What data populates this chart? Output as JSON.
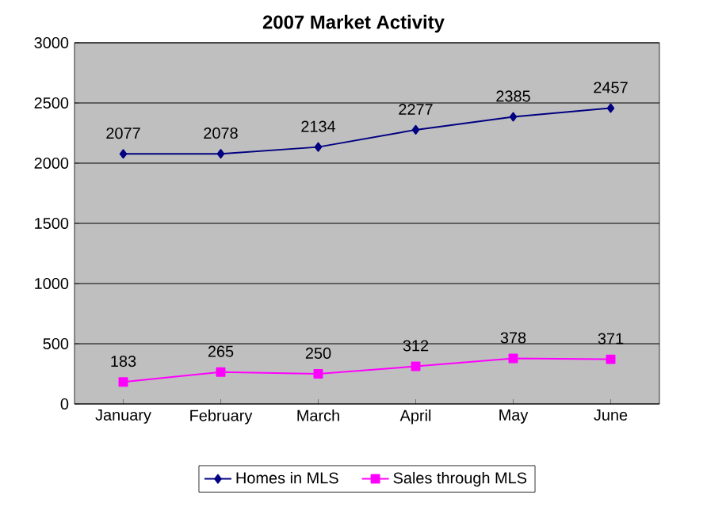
{
  "chart_data": {
    "type": "line",
    "title": "2007 Market Activity",
    "categories": [
      "January",
      "February",
      "March",
      "April",
      "May",
      "June"
    ],
    "series": [
      {
        "name": "Homes in MLS",
        "color": "#000080",
        "marker": "diamond",
        "values": [
          2077,
          2078,
          2134,
          2277,
          2385,
          2457
        ]
      },
      {
        "name": "Sales through MLS",
        "color": "#ff00ff",
        "marker": "square",
        "values": [
          183,
          265,
          250,
          312,
          378,
          371
        ]
      }
    ],
    "ylim": [
      0,
      3000
    ],
    "yticks": [
      0,
      500,
      1000,
      1500,
      2000,
      2500,
      3000
    ],
    "grid": "y",
    "legend": "bottom",
    "data_labels": true
  }
}
